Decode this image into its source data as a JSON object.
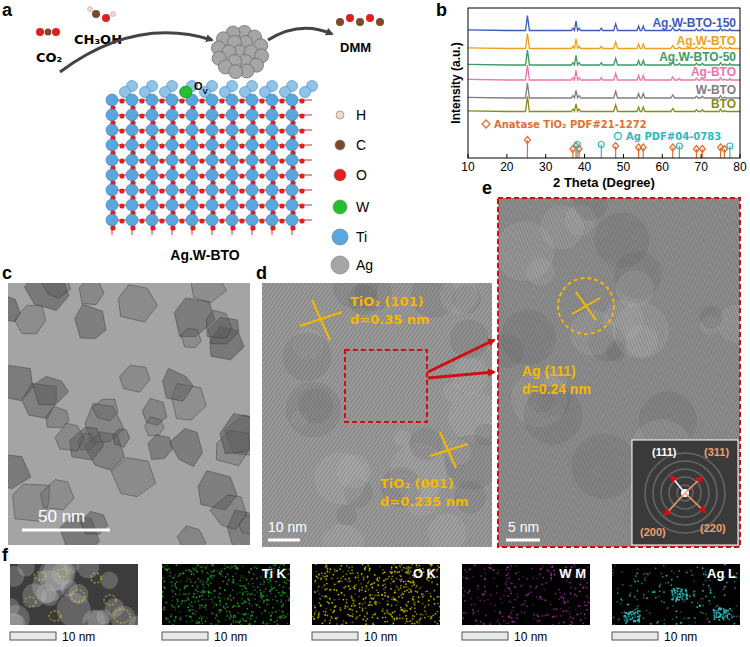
{
  "chart_data": {
    "type": "line",
    "x_label": "2 Theta (Degree)",
    "y_label": "Intensity (a.u.)",
    "x": [
      10,
      20,
      24.8,
      25.3,
      25.8,
      30,
      36.6,
      37.0,
      37.4,
      37.8,
      38.2,
      38.6,
      39.0,
      43.9,
      44.3,
      44.7,
      47.5,
      48.0,
      48.5,
      53.5,
      53.9,
      54.3,
      54.7,
      55.1,
      55.5,
      62.2,
      62.7,
      63.2,
      64.0,
      64.4,
      64.8,
      68.4,
      68.8,
      69.2,
      69.9,
      70.3,
      70.7,
      74.6,
      75.0,
      75.4,
      75.7,
      76.0,
      76.4,
      77.1,
      77.4,
      77.7,
      80
    ],
    "xlim": [
      10,
      80
    ],
    "xticks": [
      10,
      20,
      30,
      40,
      50,
      60,
      70,
      80
    ],
    "ylim": [
      0,
      100
    ],
    "tick_labels": "x",
    "series": [
      {
        "name": "Ag.W-BTO-150",
        "color": "#3b5bbf",
        "values": [
          85.4,
          85,
          85,
          95,
          85,
          85,
          85,
          86.5,
          85,
          91.5,
          85,
          86.5,
          85,
          85,
          86.5,
          85,
          85,
          89.5,
          85,
          85,
          88,
          85,
          85,
          88,
          85,
          85,
          87,
          85,
          85,
          86,
          85,
          85,
          86.2,
          85,
          85,
          86.2,
          85,
          85,
          86.5,
          85,
          85,
          85.6,
          85,
          85,
          86,
          85,
          85
        ]
      },
      {
        "name": "Ag.W-BTO",
        "color": "#f0a020",
        "values": [
          73.4,
          73,
          73,
          83,
          73,
          73,
          73,
          74.5,
          73,
          79.5,
          73,
          74.5,
          73,
          73,
          74.5,
          73,
          73,
          77.5,
          73,
          73,
          76,
          73,
          73,
          76,
          73,
          73,
          75,
          73,
          73,
          74,
          73,
          73,
          74.2,
          73,
          73,
          74.2,
          73,
          73,
          74.5,
          73,
          73,
          73.6,
          73,
          73,
          74,
          73,
          73
        ]
      },
      {
        "name": "Ag.W-BTO-50",
        "color": "#3d9a66",
        "values": [
          62.4,
          62,
          62,
          72,
          62,
          62,
          62,
          63.5,
          62,
          68.5,
          62,
          63.5,
          62,
          62,
          63.5,
          62,
          62,
          66.5,
          62,
          62,
          65,
          62,
          62,
          65,
          62,
          62,
          64,
          62,
          62,
          63,
          62,
          62,
          63.2,
          62,
          62,
          63.2,
          62,
          62,
          63.5,
          62,
          62,
          62.6,
          62,
          62,
          63,
          62,
          62
        ]
      },
      {
        "name": "Ag-BTO",
        "color": "#f074a8",
        "values": [
          52.4,
          52,
          52,
          62,
          52,
          52,
          52,
          53.5,
          52,
          58.5,
          52,
          53.5,
          52,
          52,
          53.5,
          52,
          52,
          56.5,
          52,
          52,
          55,
          52,
          52,
          55,
          52,
          52,
          54,
          52,
          52,
          53,
          52,
          52,
          53.2,
          52,
          52,
          53.2,
          52,
          52,
          53.5,
          52,
          52,
          52.6,
          52,
          52,
          53,
          52,
          52
        ]
      },
      {
        "name": "W-BTO",
        "color": "#7f7f7f",
        "values": [
          40.4,
          40,
          40,
          50,
          40,
          40,
          40,
          41.5,
          40,
          45,
          40,
          41.5,
          40,
          40,
          40,
          40,
          40,
          44.5,
          40,
          40,
          43,
          40,
          40,
          43,
          40,
          40,
          42,
          40,
          40,
          40,
          40,
          40,
          41.2,
          40,
          40,
          41.2,
          40,
          40,
          41.5,
          40,
          40,
          40.6,
          40,
          40,
          40,
          40,
          40
        ]
      },
      {
        "name": "BTO",
        "color": "#8b8b18",
        "values": [
          31.4,
          31,
          31,
          41,
          31,
          31,
          31,
          32.5,
          31,
          36,
          31,
          32.5,
          31,
          31,
          31,
          31,
          31,
          35.5,
          31,
          31,
          34,
          31,
          31,
          34,
          31,
          31,
          33,
          31,
          31,
          31,
          31,
          31,
          32.2,
          31,
          31,
          32.2,
          31,
          31,
          32.5,
          31,
          31,
          31.6,
          31,
          31,
          31,
          31,
          31
        ]
      },
      {
        "name": "Anatase TiO₂ PDF#21-1272",
        "color": "#e07030",
        "type": "stick",
        "marker": "diamond",
        "x": [
          25.3,
          37.0,
          37.8,
          38.6,
          48.0,
          53.9,
          55.1,
          62.7,
          68.8,
          70.3,
          75.0,
          76.0
        ],
        "values": [
          12,
          6,
          8,
          6,
          8,
          7,
          7,
          7,
          6,
          6,
          7,
          6
        ]
      },
      {
        "name": "Ag PDF#04-0783",
        "color": "#30b8c0",
        "type": "stick",
        "marker": "circle",
        "x": [
          38.1,
          44.3,
          64.4,
          77.4
        ],
        "values": [
          9,
          9,
          8,
          8
        ]
      }
    ]
  },
  "figure": {
    "panel_labels": [
      "a",
      "b",
      "c",
      "d",
      "e",
      "f"
    ],
    "a": {
      "reactants": [
        "CO₂",
        "CH₃OH"
      ],
      "product": "DMM",
      "vacancy": [
        "O",
        "V"
      ],
      "material": "Ag.W-BTO",
      "legend": [
        {
          "label": "H",
          "color": "#f6d8c8"
        },
        {
          "label": "C",
          "color": "#7a4a2a"
        },
        {
          "label": "O",
          "color": "#e02020"
        },
        {
          "label": "W",
          "color": "#22c02a"
        },
        {
          "label": "Ti",
          "color": "#5aa7e0"
        },
        {
          "label": "Ag",
          "color": "#a6a6a6"
        }
      ]
    },
    "c": {
      "scale_bar": "50 nm"
    },
    "d": {
      "annotations": [
        {
          "plane": "TiO₂ (101)",
          "spacing": "d=0.35 nm"
        },
        {
          "plane": "TiO₂ (001)",
          "spacing": "d=0.235 nm"
        }
      ],
      "scale_bar": "10 nm"
    },
    "e": {
      "annotation": {
        "plane": "Ag (111)",
        "spacing": "d=0.24 nm"
      },
      "scale_bar": "5 nm",
      "fft_spots": [
        {
          "label": "(111)",
          "color": "#ffffff"
        },
        {
          "label": "(311)",
          "color": "#f0a070"
        },
        {
          "label": "(200)",
          "color": "#f0a070"
        },
        {
          "label": "(220)",
          "color": "#f0a070"
        }
      ]
    },
    "f": {
      "maps": [
        {
          "label": "Ti K",
          "color": "#22b022"
        },
        {
          "label": "O K",
          "color": "#d8c800"
        },
        {
          "label": "W M",
          "color": "#b030b0"
        },
        {
          "label": "Ag L",
          "color": "#30c0c0"
        }
      ],
      "scale_bar": "10 nm"
    }
  }
}
